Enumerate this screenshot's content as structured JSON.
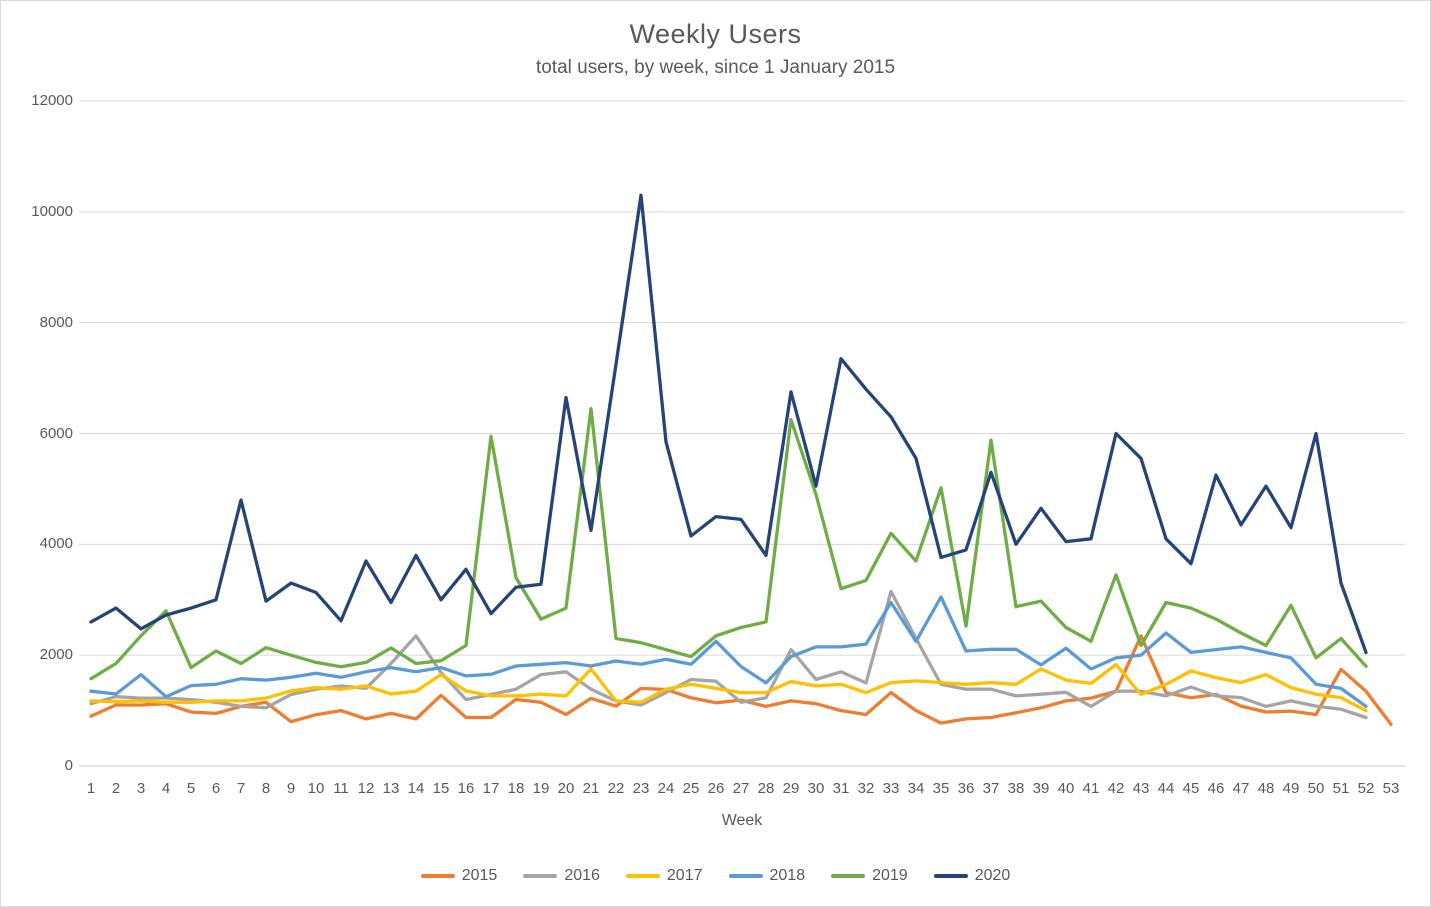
{
  "chart_data": {
    "type": "line",
    "title": "Weekly Users",
    "subtitle": "total users, by week, since 1 January 2015",
    "xlabel": "Week",
    "ylabel": "",
    "ylim": [
      0,
      12000
    ],
    "y_tick_step": 2000,
    "y_ticks": [
      0,
      2000,
      4000,
      6000,
      8000,
      10000,
      12000
    ],
    "grid": "horizontal",
    "legend_position": "bottom",
    "weeks": [
      1,
      2,
      3,
      4,
      5,
      6,
      7,
      8,
      9,
      10,
      11,
      12,
      13,
      14,
      15,
      16,
      17,
      18,
      19,
      20,
      21,
      22,
      23,
      24,
      25,
      26,
      27,
      28,
      29,
      30,
      31,
      32,
      33,
      34,
      35,
      36,
      37,
      38,
      39,
      40,
      41,
      42,
      43,
      44,
      45,
      46,
      47,
      48,
      49,
      50,
      51,
      52,
      53
    ],
    "series": [
      {
        "name": "2015",
        "color": "#ED7D31",
        "values": [
          900,
          1100,
          1100,
          1125,
          975,
          950,
          1075,
          1150,
          800,
          925,
          1000,
          850,
          950,
          850,
          1275,
          875,
          875,
          1200,
          1150,
          930,
          1220,
          1080,
          1400,
          1380,
          1230,
          1140,
          1190,
          1075,
          1175,
          1125,
          1000,
          930,
          1325,
          1000,
          775,
          850,
          875,
          960,
          1050,
          1175,
          1225,
          1350,
          2350,
          1325,
          1230,
          1290,
          1080,
          975,
          990,
          930,
          1745,
          1350,
          750
        ]
      },
      {
        "name": "2016",
        "color": "#A5A5A5",
        "values": [
          1125,
          1250,
          1225,
          1225,
          1200,
          1150,
          1075,
          1050,
          1290,
          1385,
          1445,
          1400,
          1850,
          2350,
          1685,
          1200,
          1290,
          1385,
          1650,
          1700,
          1385,
          1175,
          1100,
          1325,
          1560,
          1530,
          1150,
          1230,
          2100,
          1560,
          1700,
          1500,
          3150,
          2300,
          1475,
          1385,
          1385,
          1265,
          1295,
          1330,
          1075,
          1350,
          1350,
          1265,
          1425,
          1265,
          1235,
          1075,
          1175,
          1080,
          1025,
          875,
          null
        ]
      },
      {
        "name": "2017",
        "color": "#FFC000",
        "values": [
          1175,
          1160,
          1175,
          1150,
          1150,
          1175,
          1175,
          1225,
          1355,
          1415,
          1385,
          1445,
          1300,
          1350,
          1650,
          1355,
          1265,
          1265,
          1295,
          1265,
          1750,
          1175,
          1150,
          1385,
          1475,
          1400,
          1325,
          1325,
          1525,
          1445,
          1475,
          1325,
          1505,
          1535,
          1505,
          1475,
          1505,
          1475,
          1750,
          1550,
          1490,
          1830,
          1290,
          1475,
          1715,
          1595,
          1505,
          1650,
          1415,
          1295,
          1235,
          1000,
          null
        ]
      },
      {
        "name": "2018",
        "color": "#5B9BD5",
        "values": [
          1350,
          1300,
          1650,
          1250,
          1450,
          1475,
          1575,
          1550,
          1600,
          1675,
          1600,
          1700,
          1775,
          1700,
          1775,
          1625,
          1655,
          1805,
          1835,
          1865,
          1805,
          1895,
          1835,
          1925,
          1835,
          2250,
          1795,
          1500,
          1975,
          2150,
          2150,
          2200,
          2950,
          2250,
          3050,
          2075,
          2105,
          2105,
          1825,
          2125,
          1750,
          1950,
          2000,
          2400,
          2050,
          2100,
          2150,
          2050,
          1950,
          1475,
          1400,
          1075,
          null
        ]
      },
      {
        "name": "2019",
        "color": "#70AD47",
        "values": [
          1575,
          1850,
          2350,
          2800,
          1775,
          2075,
          1850,
          2135,
          2000,
          1870,
          1790,
          1870,
          2130,
          1850,
          1900,
          2175,
          5950,
          3400,
          2650,
          2850,
          6450,
          2300,
          2225,
          2100,
          1975,
          2350,
          2500,
          2600,
          6250,
          4900,
          3200,
          3350,
          4200,
          3700,
          5020,
          2525,
          5880,
          2875,
          2975,
          2500,
          2250,
          3450,
          2175,
          2950,
          2850,
          2650,
          2400,
          2175,
          2900,
          1950,
          2300,
          1800,
          null
        ]
      },
      {
        "name": "2020",
        "color": "#264478",
        "values": [
          2600,
          2850,
          2475,
          2725,
          2850,
          3000,
          4800,
          2975,
          3300,
          3130,
          2620,
          3700,
          2950,
          3800,
          3000,
          3550,
          2750,
          3225,
          3280,
          6650,
          4250,
          7250,
          10300,
          5850,
          4150,
          4500,
          4450,
          3800,
          6750,
          5050,
          7350,
          6800,
          6300,
          5550,
          3765,
          3900,
          5300,
          4000,
          4650,
          4050,
          4100,
          6000,
          5550,
          4100,
          3650,
          5250,
          4350,
          5050,
          4300,
          6000,
          3300,
          2050,
          null
        ]
      }
    ]
  },
  "layout_colors": {
    "gridline": "#d9d9d9",
    "axis_line": "#c6c6c6",
    "text": "#595959"
  }
}
